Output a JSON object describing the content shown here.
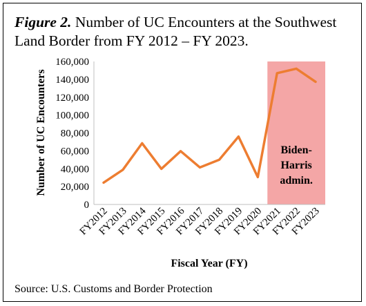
{
  "caption": {
    "figure_label": "Figure 2.",
    "text": "Number of UC Encounters at the Southwest Land Border from FY 2012 – FY 2023."
  },
  "source": "Source: U.S. Customs and Border Protection",
  "colors": {
    "line": "#ED7D31",
    "highlight": "#F4A6A6",
    "axis": "#BFBFBF",
    "text": "#000000"
  },
  "chart_data": {
    "type": "line",
    "title": "",
    "xlabel": "Fiscal Year (FY)",
    "ylabel": "Number of UC Encounters",
    "ylim": [
      0,
      160000
    ],
    "ytick_step": 20000,
    "ytick_labels": [
      "0",
      "20,000",
      "40,000",
      "60,000",
      "80,000",
      "100,000",
      "120,000",
      "140,000",
      "160,000"
    ],
    "categories": [
      "FY2012",
      "FY2013",
      "FY2014",
      "FY2015",
      "FY2016",
      "FY2017",
      "FY2018",
      "FY2019",
      "FY2020",
      "FY2021",
      "FY2022",
      "FY2023"
    ],
    "series": [
      {
        "values": [
          24400,
          38800,
          68500,
          39900,
          59700,
          41400,
          50000,
          76000,
          30600,
          146900,
          152000,
          137300
        ]
      }
    ],
    "grid": false,
    "legend": "none",
    "highlight_range": {
      "from": "FY2021",
      "to": "FY2023"
    },
    "annotation_lines": [
      "Biden-",
      "Harris",
      "admin."
    ]
  }
}
